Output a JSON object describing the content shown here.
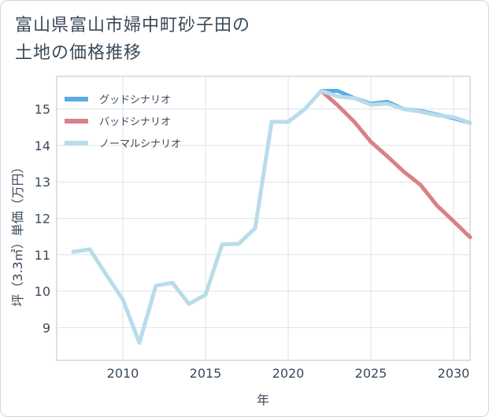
{
  "chart_data": {
    "type": "line",
    "title": "富山県富山市婦中町砂子田の土地の価格推移",
    "title_lines": [
      "富山県富山市婦中町砂子田の",
      "土地の価格推移"
    ],
    "xlabel": "年",
    "ylabel": "坪（3.3㎡）単価（万円）",
    "xlim": [
      2006,
      2031
    ],
    "ylim": [
      8.1,
      15.9
    ],
    "xticks": [
      2010,
      2015,
      2020,
      2025,
      2030
    ],
    "yticks": [
      9,
      10,
      11,
      12,
      13,
      14,
      15
    ],
    "series": [
      {
        "name": "グッドシナリオ",
        "color": "#5aace6",
        "x": [
          2022,
          2023,
          2024,
          2025,
          2026,
          2027,
          2028,
          2029,
          2030,
          2031
        ],
        "y": [
          15.5,
          15.5,
          15.3,
          15.15,
          15.2,
          15.0,
          14.95,
          14.85,
          14.75,
          14.62
        ]
      },
      {
        "name": "バッドシナリオ",
        "color": "#d9808a",
        "x": [
          2022,
          2023,
          2024,
          2025,
          2026,
          2027,
          2028,
          2029,
          2030,
          2031
        ],
        "y": [
          15.5,
          15.1,
          14.65,
          14.1,
          13.7,
          13.28,
          12.92,
          12.35,
          11.92,
          11.48
        ]
      },
      {
        "name": "ノーマルシナリオ",
        "color": "#b9dcea",
        "x": [
          2007,
          2008,
          2009,
          2010,
          2011,
          2012,
          2013,
          2014,
          2015,
          2016,
          2017,
          2018,
          2019,
          2020,
          2021,
          2022,
          2023,
          2024,
          2025,
          2026,
          2027,
          2028,
          2029,
          2030,
          2031
        ],
        "y": [
          11.08,
          11.15,
          10.45,
          9.77,
          8.58,
          10.15,
          10.23,
          9.65,
          9.9,
          11.28,
          11.3,
          11.73,
          14.65,
          14.65,
          15.0,
          15.5,
          15.35,
          15.3,
          15.12,
          15.15,
          15.0,
          14.93,
          14.83,
          14.78,
          14.62
        ]
      }
    ]
  }
}
